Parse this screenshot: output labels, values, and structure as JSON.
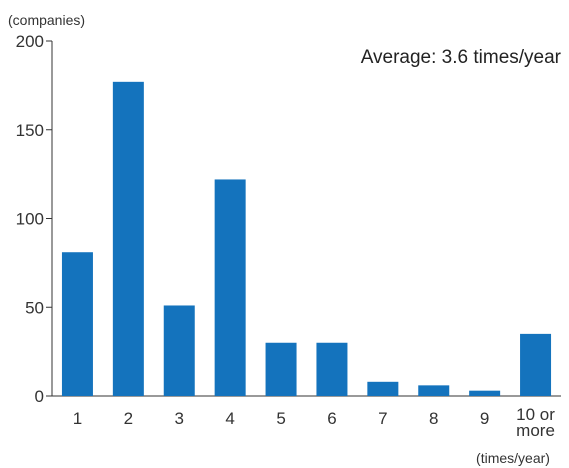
{
  "chart_data": {
    "type": "bar",
    "categories": [
      "1",
      "2",
      "3",
      "4",
      "5",
      "6",
      "7",
      "8",
      "9",
      "10 or more"
    ],
    "category_label_lines": [
      [
        "1"
      ],
      [
        "2"
      ],
      [
        "3"
      ],
      [
        "4"
      ],
      [
        "5"
      ],
      [
        "6"
      ],
      [
        "7"
      ],
      [
        "8"
      ],
      [
        "9"
      ],
      [
        "10 or",
        "more"
      ]
    ],
    "values": [
      81,
      177,
      51,
      122,
      30,
      30,
      8,
      6,
      3,
      35
    ],
    "ylim": [
      0,
      200
    ],
    "yticks": [
      0,
      50,
      100,
      150,
      200
    ],
    "ylabel": "(companies)",
    "xlabel": "(times/year)",
    "annotation": "Average: 3.6 times/year",
    "grid": false,
    "bar_color": "#1473bd"
  }
}
